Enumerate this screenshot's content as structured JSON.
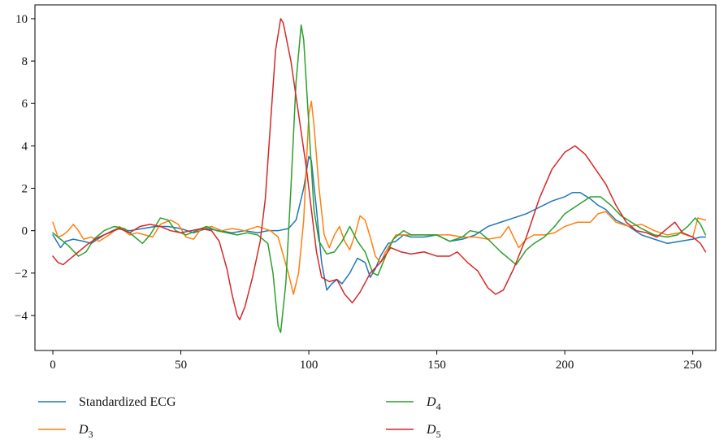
{
  "chart_data": {
    "type": "line",
    "xlim": [
      -7,
      259
    ],
    "ylim": [
      -5.65,
      10.65
    ],
    "xticks": [
      0,
      50,
      100,
      150,
      200,
      250
    ],
    "yticks": [
      -4,
      -2,
      0,
      2,
      4,
      6,
      8,
      10
    ],
    "xtick_labels": [
      "0",
      "50",
      "100",
      "150",
      "200",
      "250"
    ],
    "ytick_labels": [
      "−4",
      "−2",
      "0",
      "2",
      "4",
      "6",
      "8",
      "10"
    ],
    "legend_position": "bottom",
    "grid": false,
    "series": [
      {
        "name": "Standardized ECG",
        "color": "#1f77b4",
        "points": [
          [
            0,
            -0.2
          ],
          [
            3,
            -0.8
          ],
          [
            5,
            -0.5
          ],
          [
            8,
            -0.4
          ],
          [
            12,
            -0.5
          ],
          [
            15,
            -0.6
          ],
          [
            20,
            -0.2
          ],
          [
            25,
            0.1
          ],
          [
            30,
            0.0
          ],
          [
            35,
            0.1
          ],
          [
            40,
            0.2
          ],
          [
            45,
            0.2
          ],
          [
            50,
            0.1
          ],
          [
            55,
            -0.1
          ],
          [
            60,
            0.1
          ],
          [
            65,
            0.0
          ],
          [
            70,
            -0.1
          ],
          [
            75,
            0.0
          ],
          [
            80,
            -0.1
          ],
          [
            84,
            0.0
          ],
          [
            88,
            0.0
          ],
          [
            92,
            0.1
          ],
          [
            95,
            0.5
          ],
          [
            98,
            2.0
          ],
          [
            100,
            3.5
          ],
          [
            101,
            3.3
          ],
          [
            103,
            1.0
          ],
          [
            105,
            -1.5
          ],
          [
            107,
            -2.8
          ],
          [
            109,
            -2.5
          ],
          [
            111,
            -2.3
          ],
          [
            113,
            -2.5
          ],
          [
            116,
            -2.0
          ],
          [
            119,
            -1.3
          ],
          [
            122,
            -1.5
          ],
          [
            124,
            -2.2
          ],
          [
            126,
            -1.8
          ],
          [
            128,
            -1.2
          ],
          [
            131,
            -0.6
          ],
          [
            134,
            -0.5
          ],
          [
            137,
            -0.2
          ],
          [
            140,
            -0.3
          ],
          [
            145,
            -0.3
          ],
          [
            150,
            -0.2
          ],
          [
            155,
            -0.5
          ],
          [
            160,
            -0.4
          ],
          [
            165,
            -0.2
          ],
          [
            170,
            0.2
          ],
          [
            175,
            0.4
          ],
          [
            180,
            0.6
          ],
          [
            185,
            0.8
          ],
          [
            190,
            1.1
          ],
          [
            195,
            1.4
          ],
          [
            200,
            1.6
          ],
          [
            203,
            1.8
          ],
          [
            206,
            1.8
          ],
          [
            210,
            1.5
          ],
          [
            213,
            1.2
          ],
          [
            216,
            1.0
          ],
          [
            220,
            0.5
          ],
          [
            225,
            0.2
          ],
          [
            230,
            -0.2
          ],
          [
            235,
            -0.4
          ],
          [
            240,
            -0.6
          ],
          [
            245,
            -0.5
          ],
          [
            250,
            -0.4
          ],
          [
            253,
            -0.3
          ],
          [
            255,
            -0.3
          ]
        ]
      },
      {
        "name": "D3",
        "color": "#ff7f0e",
        "points": [
          [
            0,
            0.4
          ],
          [
            2,
            -0.3
          ],
          [
            4,
            -0.2
          ],
          [
            6,
            0.0
          ],
          [
            8,
            0.3
          ],
          [
            10,
            0.0
          ],
          [
            12,
            -0.4
          ],
          [
            15,
            -0.3
          ],
          [
            18,
            -0.5
          ],
          [
            22,
            -0.2
          ],
          [
            26,
            0.2
          ],
          [
            30,
            -0.2
          ],
          [
            33,
            -0.1
          ],
          [
            36,
            -0.2
          ],
          [
            39,
            -0.3
          ],
          [
            42,
            0.3
          ],
          [
            46,
            0.5
          ],
          [
            49,
            0.3
          ],
          [
            52,
            -0.3
          ],
          [
            55,
            -0.4
          ],
          [
            58,
            0.1
          ],
          [
            62,
            0.2
          ],
          [
            66,
            0.0
          ],
          [
            70,
            0.1
          ],
          [
            75,
            0.0
          ],
          [
            80,
            0.2
          ],
          [
            85,
            0.0
          ],
          [
            88,
            -0.3
          ],
          [
            92,
            -2.0
          ],
          [
            94,
            -3.0
          ],
          [
            96,
            -2.0
          ],
          [
            98,
            0.5
          ],
          [
            99,
            3.0
          ],
          [
            100,
            5.5
          ],
          [
            101,
            6.1
          ],
          [
            102,
            5.0
          ],
          [
            104,
            2.0
          ],
          [
            106,
            -0.2
          ],
          [
            108,
            -0.8
          ],
          [
            110,
            -0.2
          ],
          [
            112,
            0.2
          ],
          [
            114,
            -0.5
          ],
          [
            116,
            -0.9
          ],
          [
            118,
            -0.2
          ],
          [
            120,
            0.7
          ],
          [
            122,
            0.5
          ],
          [
            124,
            -0.3
          ],
          [
            126,
            -1.2
          ],
          [
            128,
            -1.5
          ],
          [
            130,
            -1.0
          ],
          [
            134,
            -0.2
          ],
          [
            138,
            -0.2
          ],
          [
            142,
            -0.2
          ],
          [
            146,
            -0.2
          ],
          [
            150,
            -0.2
          ],
          [
            155,
            -0.2
          ],
          [
            160,
            -0.3
          ],
          [
            165,
            -0.3
          ],
          [
            170,
            -0.4
          ],
          [
            175,
            -0.3
          ],
          [
            178,
            0.2
          ],
          [
            182,
            -0.8
          ],
          [
            185,
            -0.4
          ],
          [
            188,
            -0.2
          ],
          [
            192,
            -0.2
          ],
          [
            196,
            -0.1
          ],
          [
            200,
            0.2
          ],
          [
            205,
            0.4
          ],
          [
            210,
            0.4
          ],
          [
            213,
            0.8
          ],
          [
            216,
            0.9
          ],
          [
            220,
            0.4
          ],
          [
            225,
            0.2
          ],
          [
            230,
            0.3
          ],
          [
            235,
            0.0
          ],
          [
            240,
            -0.2
          ],
          [
            245,
            -0.1
          ],
          [
            250,
            -0.3
          ],
          [
            252,
            0.6
          ],
          [
            255,
            0.5
          ]
        ]
      },
      {
        "name": "D4",
        "color": "#2ca02c",
        "points": [
          [
            0,
            -0.1
          ],
          [
            3,
            -0.4
          ],
          [
            6,
            -0.7
          ],
          [
            10,
            -1.2
          ],
          [
            13,
            -1.0
          ],
          [
            16,
            -0.4
          ],
          [
            20,
            0.0
          ],
          [
            24,
            0.2
          ],
          [
            28,
            0.1
          ],
          [
            32,
            -0.3
          ],
          [
            35,
            -0.6
          ],
          [
            38,
            -0.2
          ],
          [
            42,
            0.6
          ],
          [
            45,
            0.5
          ],
          [
            48,
            0.0
          ],
          [
            52,
            -0.2
          ],
          [
            56,
            0.0
          ],
          [
            60,
            0.2
          ],
          [
            64,
            0.0
          ],
          [
            68,
            -0.1
          ],
          [
            72,
            -0.2
          ],
          [
            76,
            -0.1
          ],
          [
            80,
            -0.2
          ],
          [
            84,
            -0.6
          ],
          [
            86,
            -2.0
          ],
          [
            88,
            -4.5
          ],
          [
            89,
            -4.8
          ],
          [
            91,
            -2.5
          ],
          [
            93,
            2.0
          ],
          [
            95,
            7.0
          ],
          [
            97,
            9.7
          ],
          [
            98,
            9.0
          ],
          [
            100,
            5.0
          ],
          [
            102,
            1.0
          ],
          [
            104,
            -0.5
          ],
          [
            107,
            -1.1
          ],
          [
            110,
            -1.0
          ],
          [
            113,
            -0.5
          ],
          [
            116,
            0.2
          ],
          [
            119,
            -0.5
          ],
          [
            122,
            -1.0
          ],
          [
            125,
            -2.0
          ],
          [
            127,
            -2.1
          ],
          [
            130,
            -1.2
          ],
          [
            133,
            -0.4
          ],
          [
            137,
            0.0
          ],
          [
            140,
            -0.2
          ],
          [
            145,
            -0.2
          ],
          [
            150,
            -0.2
          ],
          [
            155,
            -0.5
          ],
          [
            160,
            -0.3
          ],
          [
            163,
            0.0
          ],
          [
            167,
            -0.1
          ],
          [
            170,
            -0.4
          ],
          [
            175,
            -1.0
          ],
          [
            178,
            -1.3
          ],
          [
            181,
            -1.6
          ],
          [
            185,
            -0.9
          ],
          [
            188,
            -0.6
          ],
          [
            192,
            -0.3
          ],
          [
            196,
            0.2
          ],
          [
            200,
            0.8
          ],
          [
            205,
            1.2
          ],
          [
            210,
            1.6
          ],
          [
            214,
            1.6
          ],
          [
            218,
            1.2
          ],
          [
            222,
            0.7
          ],
          [
            226,
            0.4
          ],
          [
            230,
            0.1
          ],
          [
            235,
            -0.2
          ],
          [
            240,
            -0.3
          ],
          [
            244,
            -0.2
          ],
          [
            248,
            0.2
          ],
          [
            251,
            0.6
          ],
          [
            253,
            0.3
          ],
          [
            255,
            -0.2
          ]
        ]
      },
      {
        "name": "D5",
        "color": "#d62728",
        "points": [
          [
            0,
            -1.2
          ],
          [
            2,
            -1.5
          ],
          [
            4,
            -1.6
          ],
          [
            7,
            -1.3
          ],
          [
            10,
            -1.0
          ],
          [
            14,
            -0.6
          ],
          [
            18,
            -0.3
          ],
          [
            22,
            -0.1
          ],
          [
            26,
            0.1
          ],
          [
            30,
            -0.1
          ],
          [
            34,
            0.2
          ],
          [
            38,
            0.3
          ],
          [
            42,
            0.2
          ],
          [
            46,
            0.0
          ],
          [
            50,
            -0.1
          ],
          [
            54,
            0.0
          ],
          [
            58,
            0.1
          ],
          [
            62,
            0.0
          ],
          [
            65,
            -0.5
          ],
          [
            68,
            -1.8
          ],
          [
            70,
            -3.0
          ],
          [
            72,
            -4.0
          ],
          [
            73,
            -4.2
          ],
          [
            75,
            -3.6
          ],
          [
            78,
            -2.2
          ],
          [
            81,
            -0.5
          ],
          [
            83,
            1.5
          ],
          [
            85,
            5.0
          ],
          [
            87,
            8.5
          ],
          [
            89,
            10.0
          ],
          [
            90,
            9.8
          ],
          [
            93,
            8.0
          ],
          [
            96,
            5.5
          ],
          [
            99,
            3.0
          ],
          [
            101,
            1.0
          ],
          [
            103,
            -1.0
          ],
          [
            105,
            -2.2
          ],
          [
            108,
            -2.4
          ],
          [
            111,
            -2.3
          ],
          [
            114,
            -3.0
          ],
          [
            117,
            -3.4
          ],
          [
            120,
            -2.9
          ],
          [
            124,
            -2.0
          ],
          [
            128,
            -1.5
          ],
          [
            132,
            -0.8
          ],
          [
            136,
            -1.0
          ],
          [
            140,
            -1.1
          ],
          [
            145,
            -1.0
          ],
          [
            150,
            -1.2
          ],
          [
            155,
            -1.2
          ],
          [
            158,
            -1.0
          ],
          [
            162,
            -1.5
          ],
          [
            166,
            -1.9
          ],
          [
            170,
            -2.7
          ],
          [
            173,
            -3.0
          ],
          [
            176,
            -2.8
          ],
          [
            180,
            -1.8
          ],
          [
            185,
            -0.3
          ],
          [
            190,
            1.5
          ],
          [
            195,
            2.9
          ],
          [
            200,
            3.7
          ],
          [
            204,
            4.0
          ],
          [
            208,
            3.6
          ],
          [
            212,
            2.9
          ],
          [
            216,
            2.2
          ],
          [
            220,
            1.2
          ],
          [
            224,
            0.4
          ],
          [
            228,
            0.0
          ],
          [
            232,
            -0.1
          ],
          [
            236,
            -0.3
          ],
          [
            240,
            0.1
          ],
          [
            243,
            0.4
          ],
          [
            246,
            -0.1
          ],
          [
            250,
            -0.3
          ],
          [
            253,
            -0.6
          ],
          [
            255,
            -1.0
          ]
        ]
      }
    ]
  },
  "legend": {
    "items": [
      {
        "main": "Standardized ECG",
        "sub": "",
        "color": "#1f77b4"
      },
      {
        "main": "D",
        "sub": "3",
        "color": "#ff7f0e"
      },
      {
        "main": "D",
        "sub": "4",
        "color": "#2ca02c"
      },
      {
        "main": "D",
        "sub": "5",
        "color": "#d62728"
      }
    ]
  }
}
